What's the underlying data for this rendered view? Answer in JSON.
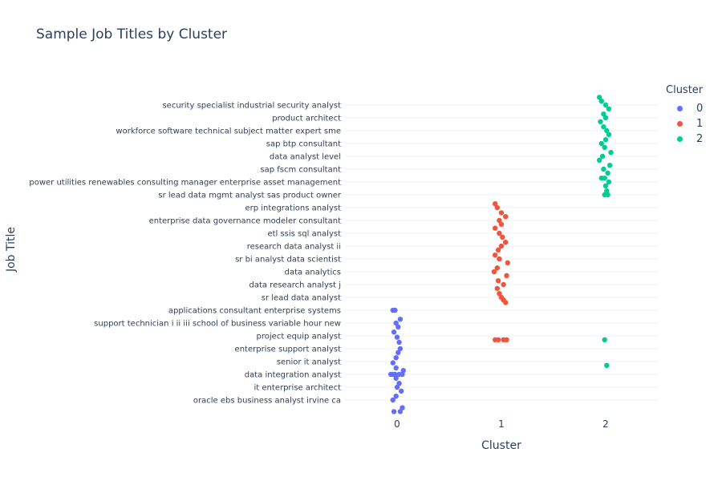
{
  "chart_data": {
    "type": "scatter",
    "title": "Sample Job Titles by Cluster",
    "xlabel": "Cluster",
    "ylabel": "Job Title",
    "x_ticks": [
      "0",
      "1",
      "2"
    ],
    "xlim": [
      -0.5,
      2.5
    ],
    "grid": "horizontal",
    "legend": {
      "title": "Cluster",
      "placement": "top-right"
    },
    "y_tick_labels": [
      "security specialist industrial security analyst",
      "product architect",
      "workforce software technical subject matter expert sme",
      "sap btp consultant",
      "data analyst level",
      "sap fscm consultant",
      "power utilities renewables consulting manager enterprise asset management",
      "sr lead data mgmt analyst sas product owner",
      "erp integrations analyst",
      "enterprise data governance modeler consultant",
      "etl ssis sql analyst",
      "research data analyst ii",
      "sr bi analyst data scientist",
      "data analytics",
      "data research analyst j",
      "sr lead data analyst",
      "applications consultant enterprise systems",
      "support technician i ii iii school of business variable hour new",
      "project equip analyst",
      "enterprise support analyst",
      "senior it analyst",
      "data integration analyst",
      "it enterprise architect",
      "oracle ebs business analyst irvine ca"
    ],
    "category_count": 47,
    "series": [
      {
        "name": "0",
        "color": "#636efa",
        "points": [
          {
            "x": -0.04,
            "y": 16
          },
          {
            "x": -0.02,
            "y": 16
          },
          {
            "x": 0.03,
            "y": 16.7
          },
          {
            "x": -0.01,
            "y": 17
          },
          {
            "x": 0.01,
            "y": 17.3
          },
          {
            "x": -0.03,
            "y": 17.7
          },
          {
            "x": 0.0,
            "y": 18.1
          },
          {
            "x": 0.02,
            "y": 18.5
          },
          {
            "x": 0.03,
            "y": 19
          },
          {
            "x": 0.01,
            "y": 19.3
          },
          {
            "x": -0.01,
            "y": 19.7
          },
          {
            "x": -0.04,
            "y": 20.1
          },
          {
            "x": -0.01,
            "y": 20.5
          },
          {
            "x": 0.06,
            "y": 20.7
          },
          {
            "x": -0.06,
            "y": 21
          },
          {
            "x": -0.04,
            "y": 21
          },
          {
            "x": -0.02,
            "y": 21
          },
          {
            "x": 0.02,
            "y": 21
          },
          {
            "x": 0.05,
            "y": 21
          },
          {
            "x": -0.01,
            "y": 21.3
          },
          {
            "x": 0.02,
            "y": 21.7
          },
          {
            "x": 0.0,
            "y": 22
          },
          {
            "x": 0.04,
            "y": 22.3
          },
          {
            "x": -0.01,
            "y": 22.7
          },
          {
            "x": -0.04,
            "y": 23
          },
          {
            "x": 0.05,
            "y": 23.6
          },
          {
            "x": -0.03,
            "y": 23.9
          },
          {
            "x": 0.03,
            "y": 23.9
          }
        ]
      },
      {
        "name": "1",
        "color": "#ef553b",
        "points": [
          {
            "x": -0.06,
            "y": 7.7
          },
          {
            "x": -0.04,
            "y": 8
          },
          {
            "x": 0.0,
            "y": 8.4
          },
          {
            "x": 0.04,
            "y": 8.7
          },
          {
            "x": -0.02,
            "y": 9
          },
          {
            "x": 0.0,
            "y": 9.3
          },
          {
            "x": -0.06,
            "y": 9.6
          },
          {
            "x": -0.02,
            "y": 10
          },
          {
            "x": 0.01,
            "y": 10.3
          },
          {
            "x": 0.04,
            "y": 10.7
          },
          {
            "x": 0.0,
            "y": 11
          },
          {
            "x": -0.03,
            "y": 11.3
          },
          {
            "x": -0.06,
            "y": 11.7
          },
          {
            "x": -0.02,
            "y": 12
          },
          {
            "x": 0.06,
            "y": 12.3
          },
          {
            "x": -0.04,
            "y": 12.7
          },
          {
            "x": -0.07,
            "y": 13
          },
          {
            "x": 0.05,
            "y": 13.3
          },
          {
            "x": -0.03,
            "y": 13.7
          },
          {
            "x": 0.02,
            "y": 14
          },
          {
            "x": -0.04,
            "y": 14.3
          },
          {
            "x": -0.02,
            "y": 14.7
          },
          {
            "x": 0.0,
            "y": 15
          },
          {
            "x": 0.02,
            "y": 15.2
          },
          {
            "x": 0.04,
            "y": 15.4
          },
          {
            "x": -0.06,
            "y": 18.3
          },
          {
            "x": -0.03,
            "y": 18.3
          },
          {
            "x": 0.02,
            "y": 18.3
          },
          {
            "x": 0.05,
            "y": 18.3
          }
        ]
      },
      {
        "name": "2",
        "color": "#00cc96",
        "points": [
          {
            "x": -0.06,
            "y": -0.6
          },
          {
            "x": -0.04,
            "y": -0.3
          },
          {
            "x": 0.0,
            "y": 0
          },
          {
            "x": 0.03,
            "y": 0.3
          },
          {
            "x": -0.02,
            "y": 0.7
          },
          {
            "x": 0.0,
            "y": 1
          },
          {
            "x": -0.05,
            "y": 1.3
          },
          {
            "x": -0.02,
            "y": 1.7
          },
          {
            "x": 0.01,
            "y": 2
          },
          {
            "x": 0.03,
            "y": 2.3
          },
          {
            "x": 0.0,
            "y": 2.7
          },
          {
            "x": -0.04,
            "y": 3
          },
          {
            "x": -0.01,
            "y": 3.3
          },
          {
            "x": 0.05,
            "y": 3.7
          },
          {
            "x": -0.03,
            "y": 4
          },
          {
            "x": -0.06,
            "y": 4.3
          },
          {
            "x": 0.04,
            "y": 4.7
          },
          {
            "x": -0.02,
            "y": 5
          },
          {
            "x": 0.02,
            "y": 5.3
          },
          {
            "x": -0.04,
            "y": 5.7
          },
          {
            "x": -0.01,
            "y": 5.7
          },
          {
            "x": 0.03,
            "y": 6
          },
          {
            "x": 0.0,
            "y": 6.3
          },
          {
            "x": 0.01,
            "y": 6.7
          },
          {
            "x": -0.01,
            "y": 7
          },
          {
            "x": 0.02,
            "y": 7
          },
          {
            "x": -0.01,
            "y": 18.3
          },
          {
            "x": 0.01,
            "y": 20.3
          }
        ]
      }
    ]
  }
}
